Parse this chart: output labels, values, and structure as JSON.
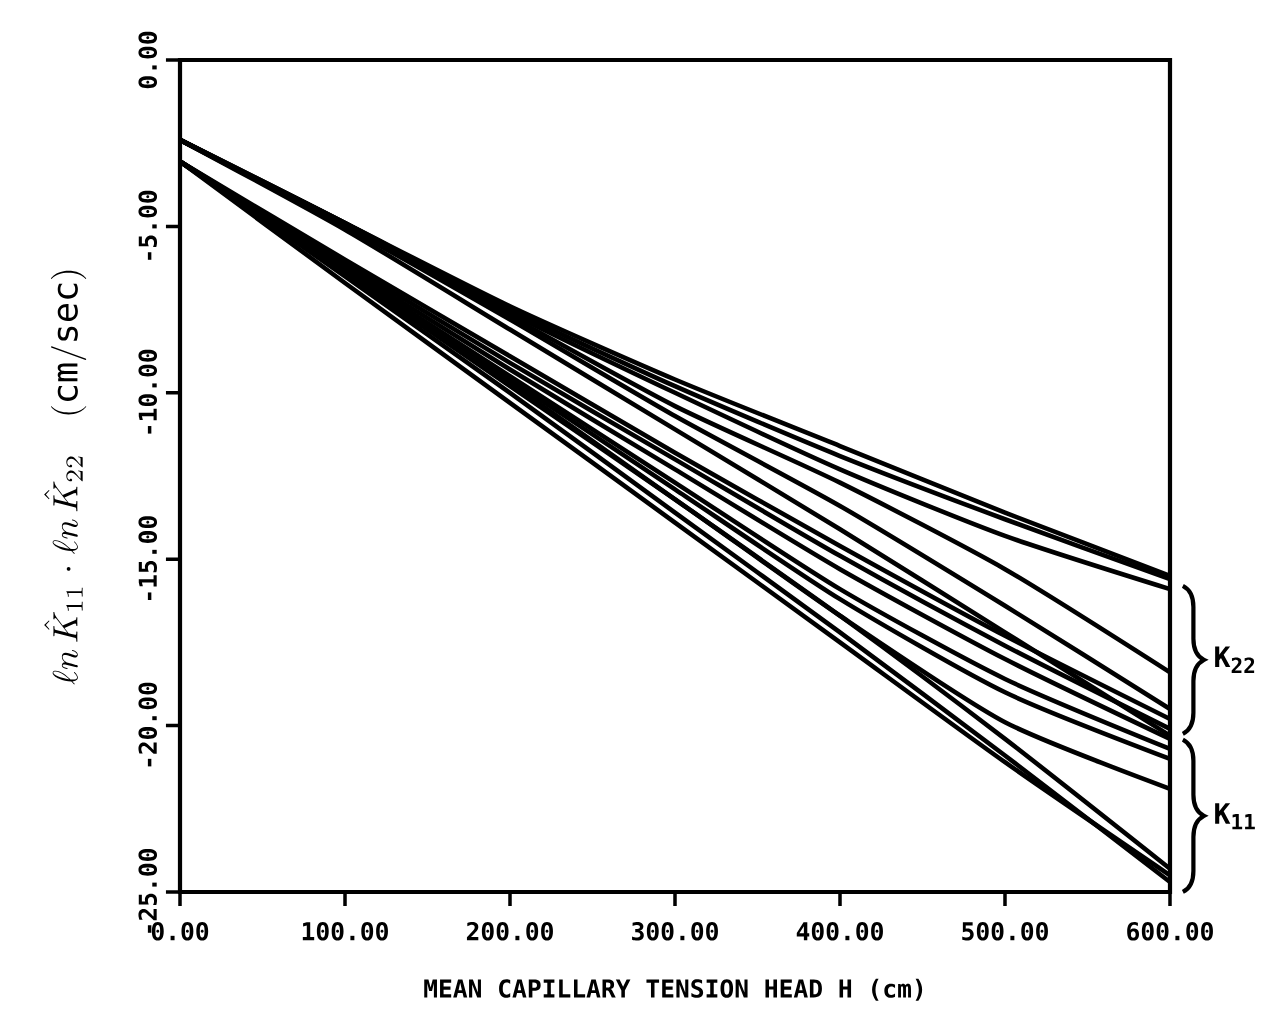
{
  "chart_data": {
    "type": "line",
    "xlabel": "MEAN CAPILLARY TENSION HEAD   H    (cm)",
    "ylabel": "\\ell n\\,\\hat{K}_{11}\\;\\mathbf{\\cdot}\\;\\ell n\\,\\hat{K}_{22}\\quad(\\mathrm{cm/sec})",
    "annotations": [
      "K$_{22}$",
      "K$_{11}$"
    ],
    "x": [
      0,
      100,
      200,
      300,
      400,
      500,
      600
    ],
    "xlim": [
      0,
      600
    ],
    "ylim": [
      -25,
      0
    ],
    "xticks": [
      {
        "value": 0,
        "label": "0.00"
      },
      {
        "value": 100,
        "label": "100.00"
      },
      {
        "value": 200,
        "label": "200.00"
      },
      {
        "value": 300,
        "label": "300.00"
      },
      {
        "value": 400,
        "label": "400.00"
      },
      {
        "value": 500,
        "label": "500.00"
      },
      {
        "value": 600,
        "label": "600.00"
      }
    ],
    "yticks": [
      {
        "value": 0,
        "label": "0.00"
      },
      {
        "value": -5,
        "label": "-5.00"
      },
      {
        "value": -10,
        "label": "-10.00"
      },
      {
        "value": -15,
        "label": "-15.00"
      },
      {
        "value": -20,
        "label": "-20.00"
      },
      {
        "value": -25,
        "label": "-25.00"
      }
    ],
    "line_style": "solid",
    "marker": "none",
    "series": [
      {
        "color": "#000000",
        "values": [
          -2.4,
          -4.9,
          -7.4,
          -9.6,
          -11.6,
          -13.6,
          -15.5
        ]
      },
      {
        "color": "#000000",
        "values": [
          -2.4,
          -4.9,
          -7.5,
          -9.8,
          -11.9,
          -13.8,
          -15.6
        ]
      },
      {
        "color": "#000000",
        "values": [
          -2.4,
          -4.9,
          -7.6,
          -10.0,
          -12.3,
          -14.3,
          -15.9
        ]
      },
      {
        "color": "#000000",
        "values": [
          -2.4,
          -5.0,
          -7.7,
          -10.4,
          -12.7,
          -15.3,
          -18.4
        ]
      },
      {
        "color": "#000000",
        "values": [
          -2.4,
          -5.0,
          -7.8,
          -10.7,
          -13.4,
          -16.4,
          -19.5
        ]
      },
      {
        "color": "#000000",
        "values": [
          -2.4,
          -5.1,
          -8.1,
          -11.1,
          -14.1,
          -17.2,
          -20.3
        ]
      },
      {
        "color": "#000000",
        "values": [
          -3.05,
          -6.0,
          -8.9,
          -11.8,
          -14.6,
          -17.3,
          -19.8
        ]
      },
      {
        "color": "#000000",
        "values": [
          -3.05,
          -6.1,
          -9.1,
          -12.0,
          -14.9,
          -17.6,
          -20.1
        ]
      },
      {
        "color": "#000000",
        "values": [
          -3.05,
          -6.2,
          -9.3,
          -12.3,
          -15.3,
          -18.0,
          -20.4
        ]
      },
      {
        "color": "#000000",
        "values": [
          -3.05,
          -6.3,
          -9.5,
          -12.7,
          -15.9,
          -18.6,
          -20.7
        ]
      },
      {
        "color": "#000000",
        "values": [
          -3.05,
          -6.3,
          -9.6,
          -12.9,
          -16.2,
          -19.0,
          -21.0
        ]
      },
      {
        "color": "#000000",
        "values": [
          -3.05,
          -6.4,
          -9.8,
          -13.2,
          -16.7,
          -19.9,
          -21.9
        ]
      },
      {
        "color": "#000000",
        "values": [
          -3.05,
          -6.3,
          -9.7,
          -13.2,
          -16.7,
          -20.4,
          -24.3
        ]
      },
      {
        "color": "#000000",
        "values": [
          -3.05,
          -6.5,
          -10.0,
          -13.6,
          -17.2,
          -20.9,
          -24.7
        ]
      },
      {
        "color": "#000000",
        "values": [
          -3.05,
          -6.7,
          -10.3,
          -13.9,
          -17.5,
          -21.1,
          -24.5
        ]
      }
    ]
  }
}
